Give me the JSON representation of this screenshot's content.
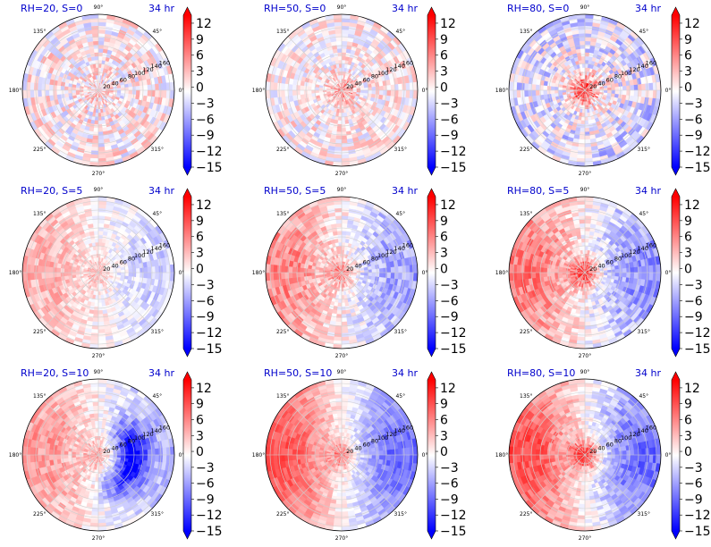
{
  "figure": {
    "colorbar": {
      "ticks": [
        "12",
        "9",
        "6",
        "3",
        "0",
        "−3",
        "−6",
        "−9",
        "−12",
        "−15"
      ],
      "tick_values": [
        12,
        9,
        6,
        3,
        0,
        -3,
        -6,
        -9,
        -12,
        -15
      ],
      "range": [
        -15,
        13.5
      ],
      "colormap": "bwr",
      "colors": {
        "low": "#0000ff",
        "mid": "#ffffff",
        "high": "#ff0000"
      }
    },
    "angle_labels": [
      "90°",
      "45°",
      "0°",
      "315°",
      "270°",
      "225°",
      "180°",
      "135°"
    ],
    "radial_labels": [
      "20",
      "40",
      "60",
      "80",
      "100",
      "120",
      "140",
      "160"
    ]
  },
  "chart_data": [
    {
      "type": "heatmap",
      "title": "RH=20, S=0",
      "time_label": "34 hr",
      "rh": 20,
      "s": 0,
      "projection": "polar",
      "radial_ticks": [
        20,
        40,
        60,
        80,
        100,
        120,
        140,
        160
      ],
      "angle_ticks_deg": [
        0,
        45,
        90,
        135,
        180,
        225,
        270,
        315
      ],
      "value_range": [
        -15,
        13.5
      ],
      "pattern": {
        "west_east_dipole": 0.0,
        "core_max": 1.5,
        "noise": 4.5
      }
    },
    {
      "type": "heatmap",
      "title": "RH=50, S=0",
      "time_label": "34 hr",
      "rh": 50,
      "s": 0,
      "projection": "polar",
      "radial_ticks": [
        20,
        40,
        60,
        80,
        100,
        120,
        140,
        160
      ],
      "angle_ticks_deg": [
        0,
        45,
        90,
        135,
        180,
        225,
        270,
        315
      ],
      "value_range": [
        -15,
        13.5
      ],
      "pattern": {
        "west_east_dipole": 0.0,
        "core_max": 5.0,
        "noise": 4.0
      }
    },
    {
      "type": "heatmap",
      "title": "RH=80, S=0",
      "time_label": "34 hr",
      "rh": 80,
      "s": 0,
      "projection": "polar",
      "radial_ticks": [
        20,
        40,
        60,
        80,
        100,
        120,
        140,
        160
      ],
      "angle_ticks_deg": [
        0,
        45,
        90,
        135,
        180,
        225,
        270,
        315
      ],
      "value_range": [
        -15,
        13.5
      ],
      "pattern": {
        "west_east_dipole": 0.0,
        "core_max": 10.0,
        "noise": 5.0,
        "bias": -3.0
      }
    },
    {
      "type": "heatmap",
      "title": "RH=20, S=5",
      "time_label": "34 hr",
      "rh": 20,
      "s": 5,
      "projection": "polar",
      "radial_ticks": [
        20,
        40,
        60,
        80,
        100,
        120,
        140,
        160
      ],
      "angle_ticks_deg": [
        0,
        45,
        90,
        135,
        180,
        225,
        270,
        315
      ],
      "value_range": [
        -15,
        13.5
      ],
      "pattern": {
        "west_east_dipole": 3.5,
        "core_max": 3.0,
        "noise": 2.5
      }
    },
    {
      "type": "heatmap",
      "title": "RH=50, S=5",
      "time_label": "34 hr",
      "rh": 50,
      "s": 5,
      "projection": "polar",
      "radial_ticks": [
        20,
        40,
        60,
        80,
        100,
        120,
        140,
        160
      ],
      "angle_ticks_deg": [
        0,
        45,
        90,
        135,
        180,
        225,
        270,
        315
      ],
      "value_range": [
        -15,
        13.5
      ],
      "pattern": {
        "west_east_dipole": 6.0,
        "core_max": 6.0,
        "noise": 3.0
      }
    },
    {
      "type": "heatmap",
      "title": "RH=80, S=5",
      "time_label": "34 hr",
      "rh": 80,
      "s": 5,
      "projection": "polar",
      "radial_ticks": [
        20,
        40,
        60,
        80,
        100,
        120,
        140,
        160
      ],
      "angle_ticks_deg": [
        0,
        45,
        90,
        135,
        180,
        225,
        270,
        315
      ],
      "value_range": [
        -15,
        13.5
      ],
      "pattern": {
        "west_east_dipole": 7.0,
        "core_max": 10.0,
        "noise": 3.0
      }
    },
    {
      "type": "heatmap",
      "title": "RH=20, S=10",
      "time_label": "34 hr",
      "rh": 20,
      "s": 10,
      "projection": "polar",
      "radial_ticks": [
        20,
        40,
        60,
        80,
        100,
        120,
        140,
        160
      ],
      "angle_ticks_deg": [
        0,
        45,
        90,
        135,
        180,
        225,
        270,
        315
      ],
      "value_range": [
        -15,
        13.5
      ],
      "pattern": {
        "west_east_dipole": 5.0,
        "core_max": 4.0,
        "noise": 2.5,
        "east_core_min": -12.0
      }
    },
    {
      "type": "heatmap",
      "title": "RH=50, S=10",
      "time_label": "34 hr",
      "rh": 50,
      "s": 10,
      "projection": "polar",
      "radial_ticks": [
        20,
        40,
        60,
        80,
        100,
        120,
        140,
        160
      ],
      "angle_ticks_deg": [
        0,
        45,
        90,
        135,
        180,
        225,
        270,
        315
      ],
      "value_range": [
        -15,
        13.5
      ],
      "pattern": {
        "west_east_dipole": 9.0,
        "core_max": 6.0,
        "noise": 2.0
      }
    },
    {
      "type": "heatmap",
      "title": "RH=80, S=10",
      "time_label": "34 hr",
      "rh": 80,
      "s": 10,
      "projection": "polar",
      "radial_ticks": [
        20,
        40,
        60,
        80,
        100,
        120,
        140,
        160
      ],
      "angle_ticks_deg": [
        0,
        45,
        90,
        135,
        180,
        225,
        270,
        315
      ],
      "value_range": [
        -15,
        13.5
      ],
      "pattern": {
        "west_east_dipole": 9.0,
        "core_max": 11.0,
        "noise": 2.5
      }
    }
  ]
}
